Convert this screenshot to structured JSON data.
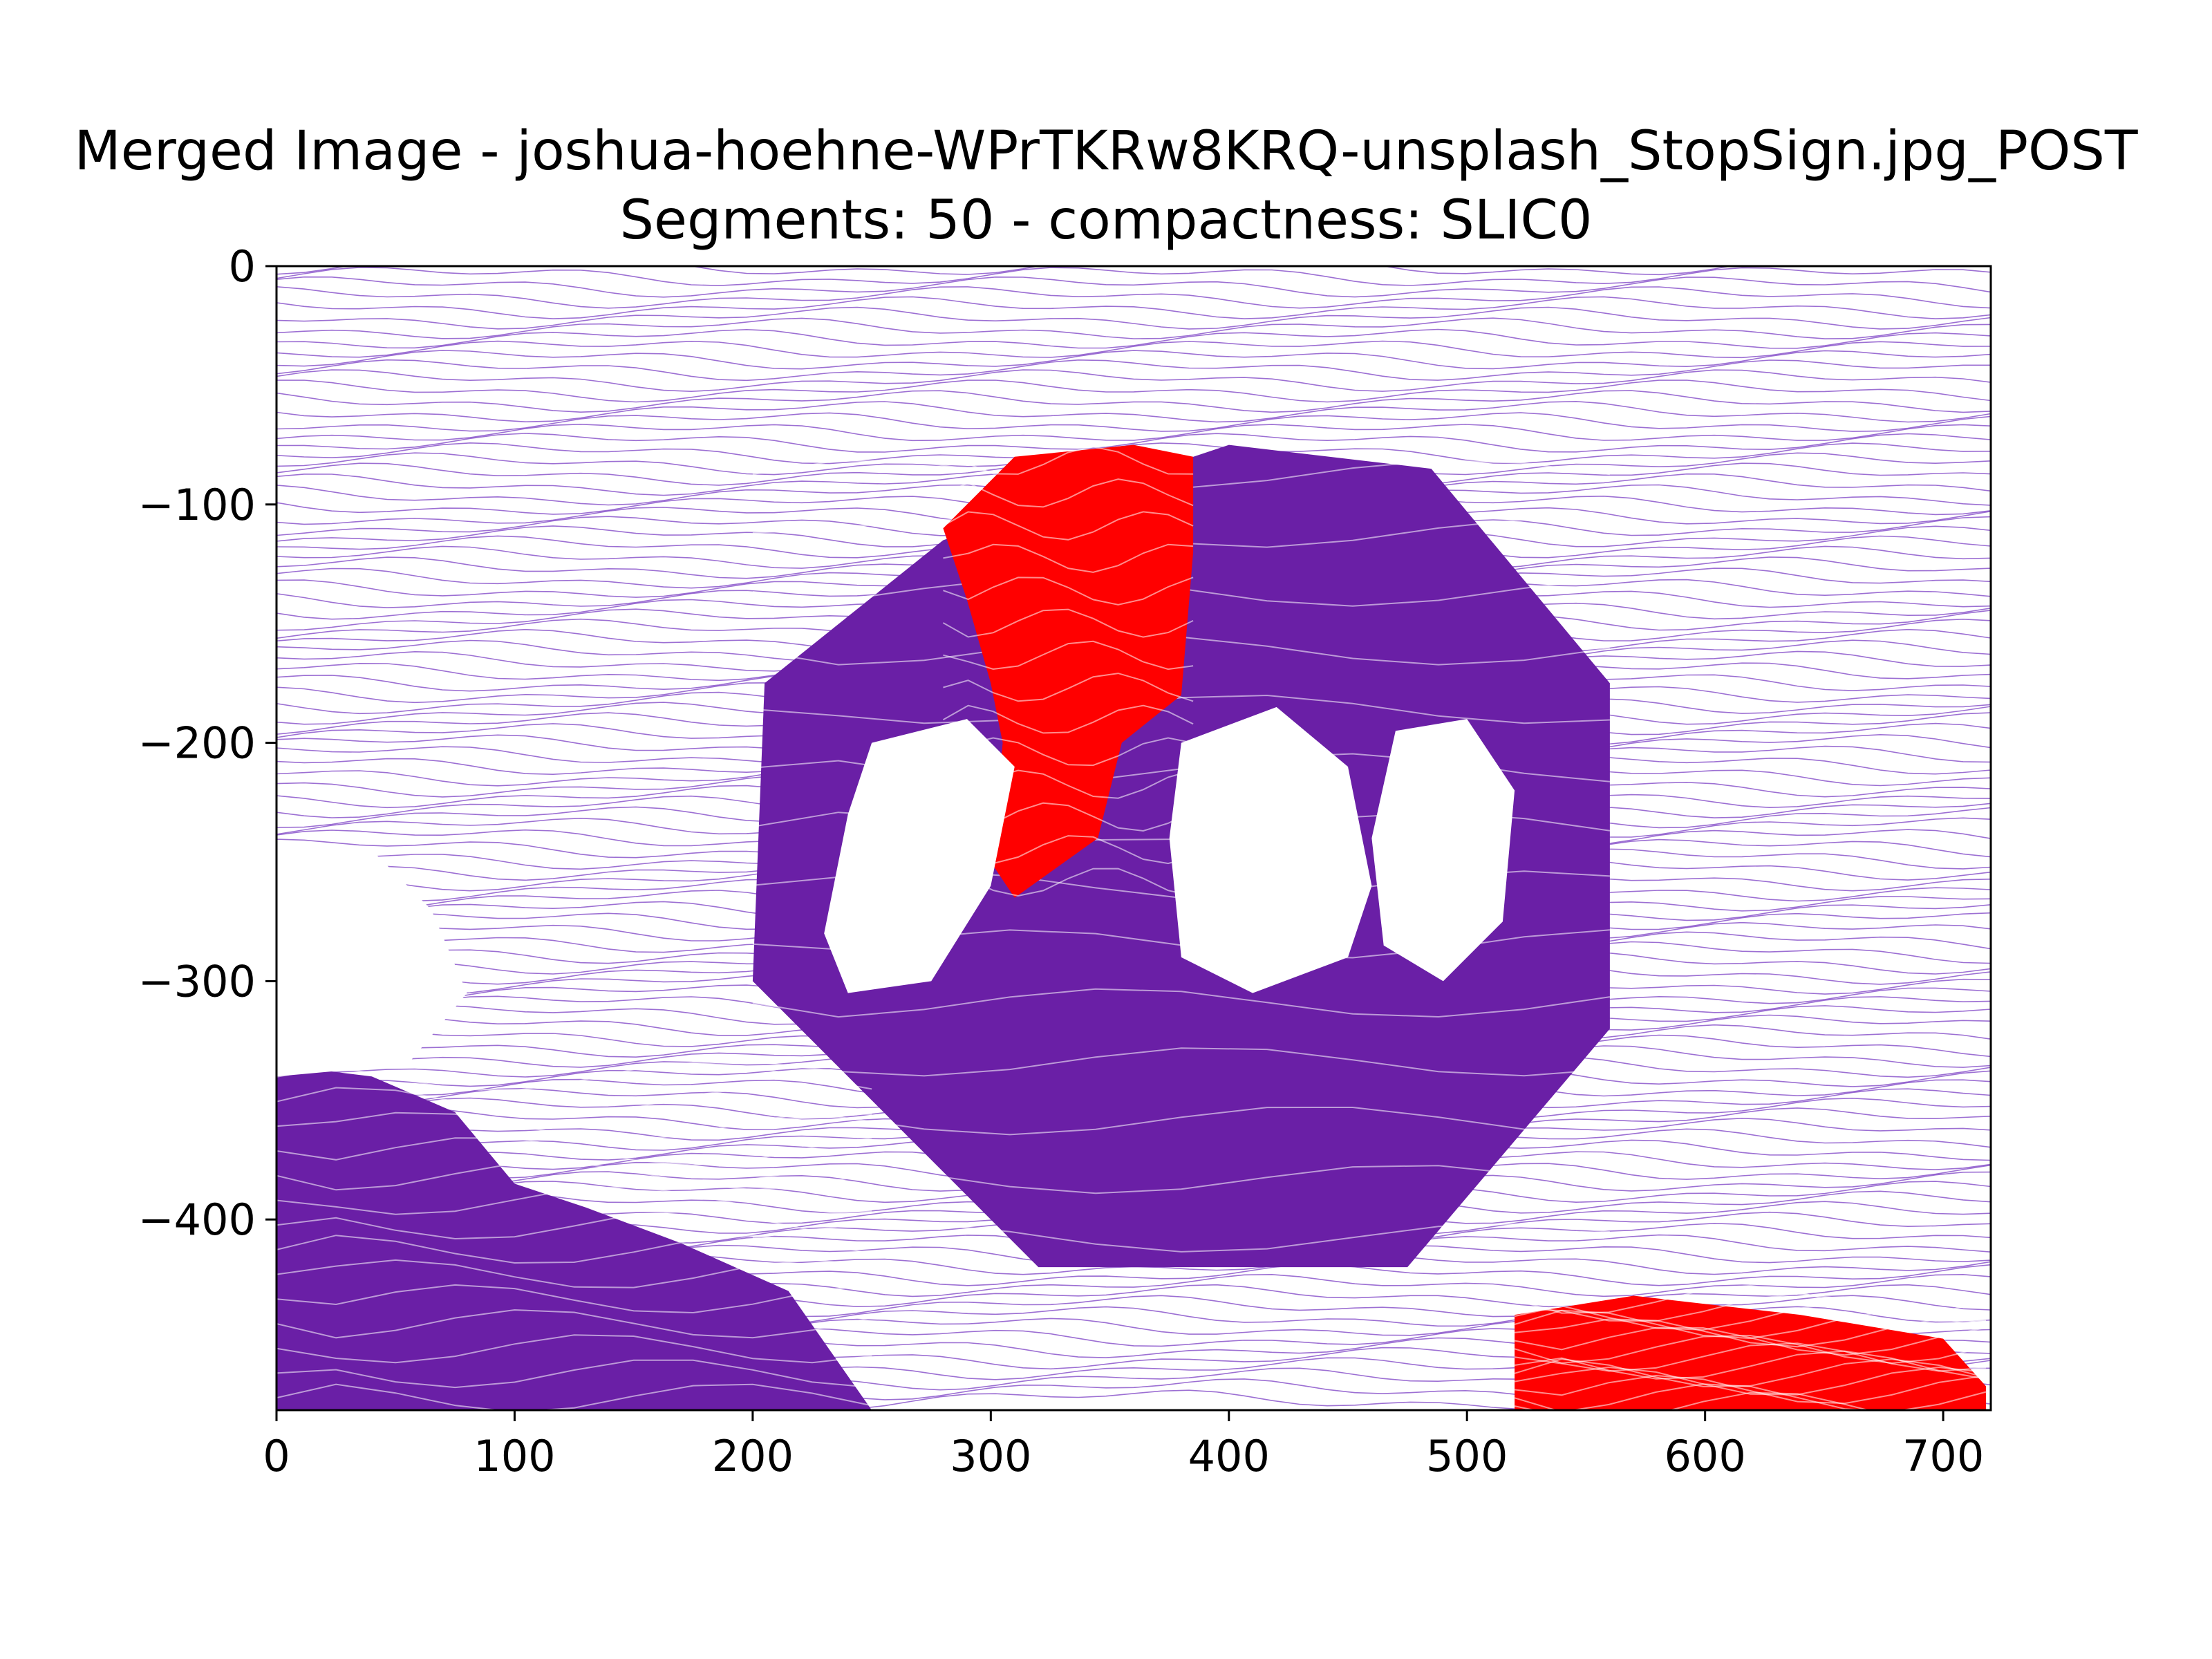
{
  "chart_data": {
    "type": "streamplot",
    "title_line1": "Merged Image - joshua-hoehne-WPrTKRw8KRQ-unsplash_StopSign.jpg_POST",
    "title_line2": "Segments: 50 - compactness: SLIC0",
    "xlim": [
      0,
      720
    ],
    "ylim": [
      -480,
      0
    ],
    "xticks": [
      0,
      100,
      200,
      300,
      400,
      500,
      600,
      700
    ],
    "yticks": [
      0,
      -100,
      -200,
      -300,
      -400
    ],
    "xtick_labels": [
      "0",
      "100",
      "200",
      "300",
      "400",
      "500",
      "600",
      "700"
    ],
    "ytick_labels": [
      "0",
      "−100",
      "−200",
      "−300",
      "−400"
    ],
    "colors": {
      "background_stream": "#7b3fc4",
      "dense_stream": "#6a1fa6",
      "highlight_stream": "#ff0000"
    },
    "regions": [
      {
        "kind": "octagon",
        "color": "dense_stream",
        "points": [
          [
            205,
            -175
          ],
          [
            280,
            -115
          ],
          [
            400,
            -75
          ],
          [
            485,
            -85
          ],
          [
            560,
            -175
          ],
          [
            560,
            -320
          ],
          [
            475,
            -420
          ],
          [
            320,
            -420
          ],
          [
            230,
            -330
          ],
          [
            200,
            -300
          ]
        ]
      },
      {
        "kind": "polygon",
        "color": "dense_stream",
        "points": [
          [
            0,
            -335
          ],
          [
            40,
            -340
          ],
          [
            75,
            -355
          ],
          [
            100,
            -385
          ],
          [
            130,
            -395
          ],
          [
            170,
            -410
          ],
          [
            215,
            -430
          ],
          [
            250,
            -480
          ],
          [
            0,
            -480
          ]
        ]
      },
      {
        "kind": "polygon",
        "color": "highlight_stream",
        "points": [
          [
            280,
            -110
          ],
          [
            310,
            -80
          ],
          [
            360,
            -75
          ],
          [
            385,
            -80
          ],
          [
            385,
            -120
          ],
          [
            380,
            -180
          ],
          [
            355,
            -200
          ],
          [
            345,
            -240
          ],
          [
            310,
            -265
          ],
          [
            300,
            -250
          ],
          [
            305,
            -200
          ],
          [
            300,
            -175
          ],
          [
            290,
            -140
          ]
        ]
      },
      {
        "kind": "polygon",
        "color": "highlight_stream",
        "points": [
          [
            520,
            -440
          ],
          [
            570,
            -432
          ],
          [
            640,
            -440
          ],
          [
            700,
            -450
          ],
          [
            718,
            -470
          ],
          [
            718,
            -480
          ],
          [
            520,
            -480
          ]
        ]
      }
    ],
    "holes": [
      {
        "points": [
          [
            250,
            -200
          ],
          [
            290,
            -190
          ],
          [
            310,
            -210
          ],
          [
            300,
            -260
          ],
          [
            275,
            -300
          ],
          [
            240,
            -305
          ],
          [
            230,
            -280
          ],
          [
            240,
            -230
          ]
        ]
      },
      {
        "points": [
          [
            380,
            -200
          ],
          [
            420,
            -185
          ],
          [
            450,
            -210
          ],
          [
            460,
            -260
          ],
          [
            450,
            -290
          ],
          [
            410,
            -305
          ],
          [
            380,
            -290
          ],
          [
            375,
            -240
          ]
        ]
      },
      {
        "points": [
          [
            470,
            -195
          ],
          [
            500,
            -190
          ],
          [
            520,
            -220
          ],
          [
            515,
            -275
          ],
          [
            490,
            -300
          ],
          [
            465,
            -285
          ],
          [
            460,
            -240
          ]
        ]
      },
      {
        "points": [
          [
            0,
            -245
          ],
          [
            40,
            -245
          ],
          [
            65,
            -270
          ],
          [
            80,
            -305
          ],
          [
            55,
            -335
          ],
          [
            0,
            -340
          ]
        ]
      }
    ]
  }
}
